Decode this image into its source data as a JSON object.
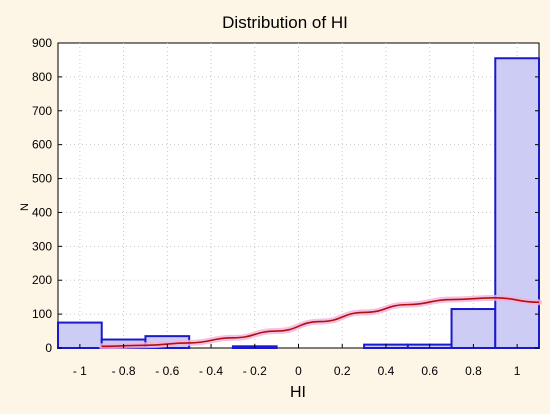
{
  "chart_data": {
    "type": "bar",
    "title": "Distribution of HI",
    "xlabel": "HI",
    "ylabel": "N",
    "xlim": [
      -1.1,
      1.1
    ],
    "ylim": [
      0,
      900
    ],
    "grid": true,
    "yticks": [
      0,
      100,
      200,
      300,
      400,
      500,
      600,
      700,
      800,
      900
    ],
    "xtick_labels": [
      {
        "value": -1.0,
        "label": "- 1"
      },
      {
        "value": -0.8,
        "label": "- 0.8"
      },
      {
        "value": -0.6,
        "label": "- 0.6"
      },
      {
        "value": -0.4,
        "label": "- 0.4"
      },
      {
        "value": -0.2,
        "label": "- 0.2"
      },
      {
        "value": 0.0,
        "label": "0"
      },
      {
        "value": 0.2,
        "label": "0.2"
      },
      {
        "value": 0.4,
        "label": "0.4"
      },
      {
        "value": 0.6,
        "label": "0.6"
      },
      {
        "value": 0.8,
        "label": "0.8"
      },
      {
        "value": 1.0,
        "label": "1"
      }
    ],
    "bins": [
      {
        "x0": -1.1,
        "x1": -0.9,
        "count": 75
      },
      {
        "x0": -0.9,
        "x1": -0.7,
        "count": 25
      },
      {
        "x0": -0.7,
        "x1": -0.5,
        "count": 35
      },
      {
        "x0": -0.5,
        "x1": -0.3,
        "count": 0
      },
      {
        "x0": -0.3,
        "x1": -0.1,
        "count": 5
      },
      {
        "x0": -0.1,
        "x1": 0.1,
        "count": 0
      },
      {
        "x0": 0.1,
        "x1": 0.3,
        "count": 0
      },
      {
        "x0": 0.3,
        "x1": 0.5,
        "count": 10
      },
      {
        "x0": 0.5,
        "x1": 0.7,
        "count": 10
      },
      {
        "x0": 0.7,
        "x1": 0.9,
        "count": 115
      },
      {
        "x0": 0.9,
        "x1": 1.1,
        "count": 855
      }
    ],
    "fit_curve": {
      "x": [
        -0.9,
        -0.7,
        -0.5,
        -0.3,
        -0.1,
        0.1,
        0.3,
        0.5,
        0.7,
        0.9,
        1.1
      ],
      "y": [
        5,
        8,
        15,
        30,
        50,
        78,
        105,
        128,
        143,
        148,
        135
      ]
    },
    "colors": {
      "bar_fill": "#ccccf5",
      "bar_edge": "#1a1acc",
      "fit_line": "#b01010",
      "fit_glow": "#f5b0dc",
      "background": "#fdf5e6",
      "plot_bg": "#ffffff"
    }
  }
}
